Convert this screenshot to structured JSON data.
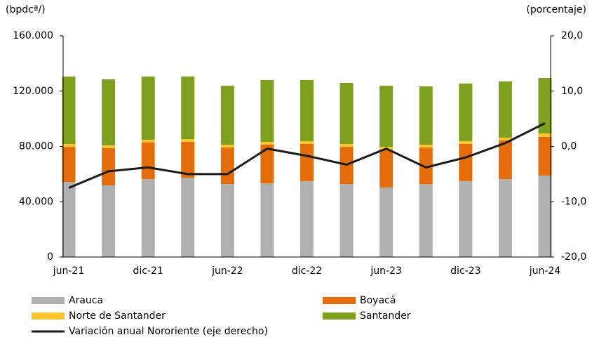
{
  "chart_data": {
    "type": "bar",
    "stacked": true,
    "y_label": "(bpdcª/)",
    "y2_label": "(porcentaje)",
    "categories": [
      "jun-21",
      null,
      "dic-21",
      null,
      "jun-22",
      null,
      "dic-22",
      null,
      "jun-23",
      null,
      "dic-23",
      null,
      "jun-24"
    ],
    "series": [
      {
        "name": "Arauca",
        "color": "#b0b0b0",
        "values": [
          54300,
          51800,
          56400,
          57400,
          52800,
          53300,
          54900,
          52800,
          50300,
          52800,
          54900,
          56400,
          58900
        ]
      },
      {
        "name": "Boyacá",
        "color": "#e46c0a",
        "values": [
          25400,
          26900,
          26400,
          25900,
          26400,
          28000,
          26900,
          26900,
          27400,
          26400,
          26900,
          27900,
          28000
        ]
      },
      {
        "name": "Norte de Santander",
        "color": "#ffc52a",
        "values": [
          2000,
          2000,
          2000,
          2000,
          2000,
          2000,
          2000,
          2000,
          2000,
          2000,
          2000,
          2000,
          2500
        ]
      },
      {
        "name": "Santander",
        "color": "#7f9f1f",
        "values": [
          48800,
          47800,
          45700,
          45200,
          42700,
          44700,
          44200,
          44300,
          44200,
          42200,
          41700,
          40700,
          40100
        ]
      },
      {
        "name": "Variación anual Nororiente (eje derecho)",
        "type": "line",
        "axis": "y2",
        "color": "#1a1a1a",
        "values": [
          -7.5,
          -4.5,
          -3.8,
          -5.0,
          -5.0,
          -0.4,
          -1.7,
          -3.3,
          -0.4,
          -3.8,
          -2.0,
          0.6,
          4.2
        ]
      }
    ],
    "ylim": [
      0,
      160000
    ],
    "yticks": [
      0,
      {
        "value": 40000,
        "label": "40.000"
      },
      {
        "value": 80000,
        "label": "80.000"
      },
      {
        "value": 120000,
        "label": "120.000"
      },
      {
        "value": 160000,
        "label": "160.000"
      }
    ],
    "y2lim": [
      -20,
      20
    ],
    "y2ticks": [
      {
        "value": -20,
        "label": "-20,0"
      },
      {
        "value": -10,
        "label": "-10,0"
      },
      {
        "value": 0,
        "label": "0,0"
      },
      {
        "value": 10,
        "label": "10,0"
      },
      {
        "value": 20,
        "label": "20,0"
      }
    ],
    "grid": false
  }
}
